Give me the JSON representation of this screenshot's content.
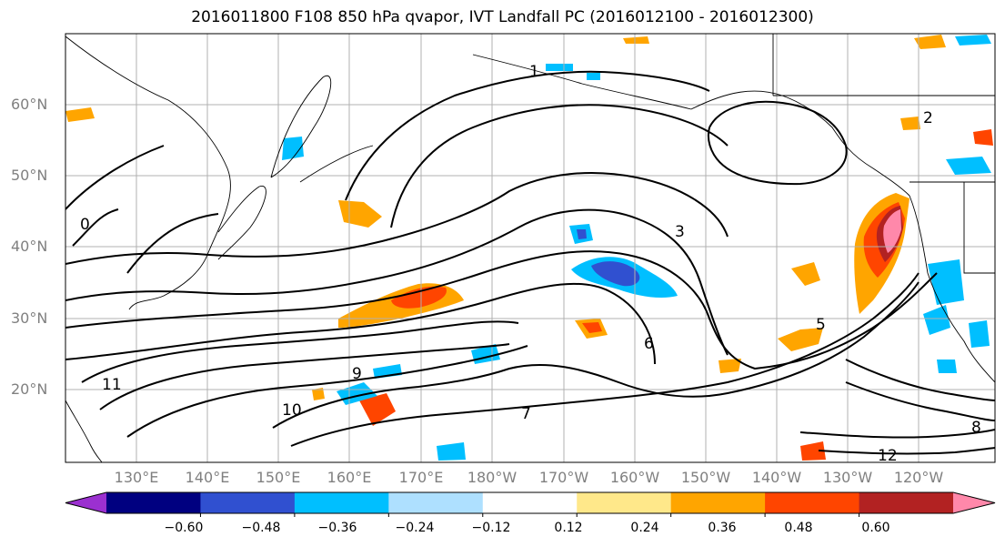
{
  "title": "2016011800 F108 850 hPa qvapor, IVT Landfall PC (2016012100 - 2016012300)",
  "lat_labels": [
    "60°N",
    "50°N",
    "40°N",
    "30°N",
    "20°N"
  ],
  "lon_labels": [
    "130°E",
    "140°E",
    "150°E",
    "160°E",
    "170°E",
    "180°W",
    "170°W",
    "160°W",
    "150°W",
    "140°W",
    "130°W",
    "120°W"
  ],
  "colorbar": {
    "ticks": [
      "−0.60",
      "−0.48",
      "−0.36",
      "−0.24",
      "−0.12",
      "0.12",
      "0.24",
      "0.36",
      "0.48",
      "0.60"
    ],
    "colors": [
      "#9b30d0",
      "#000080",
      "#3050d0",
      "#00bfff",
      "#aee0ff",
      "#ffffff",
      "#ffe88a",
      "#ffa500",
      "#ff4500",
      "#b22222",
      "#ff88aa"
    ]
  },
  "contour_labels": [
    "0",
    "1",
    "2",
    "3",
    "5",
    "6",
    "7",
    "8",
    "9",
    "10",
    "11",
    "12"
  ]
}
